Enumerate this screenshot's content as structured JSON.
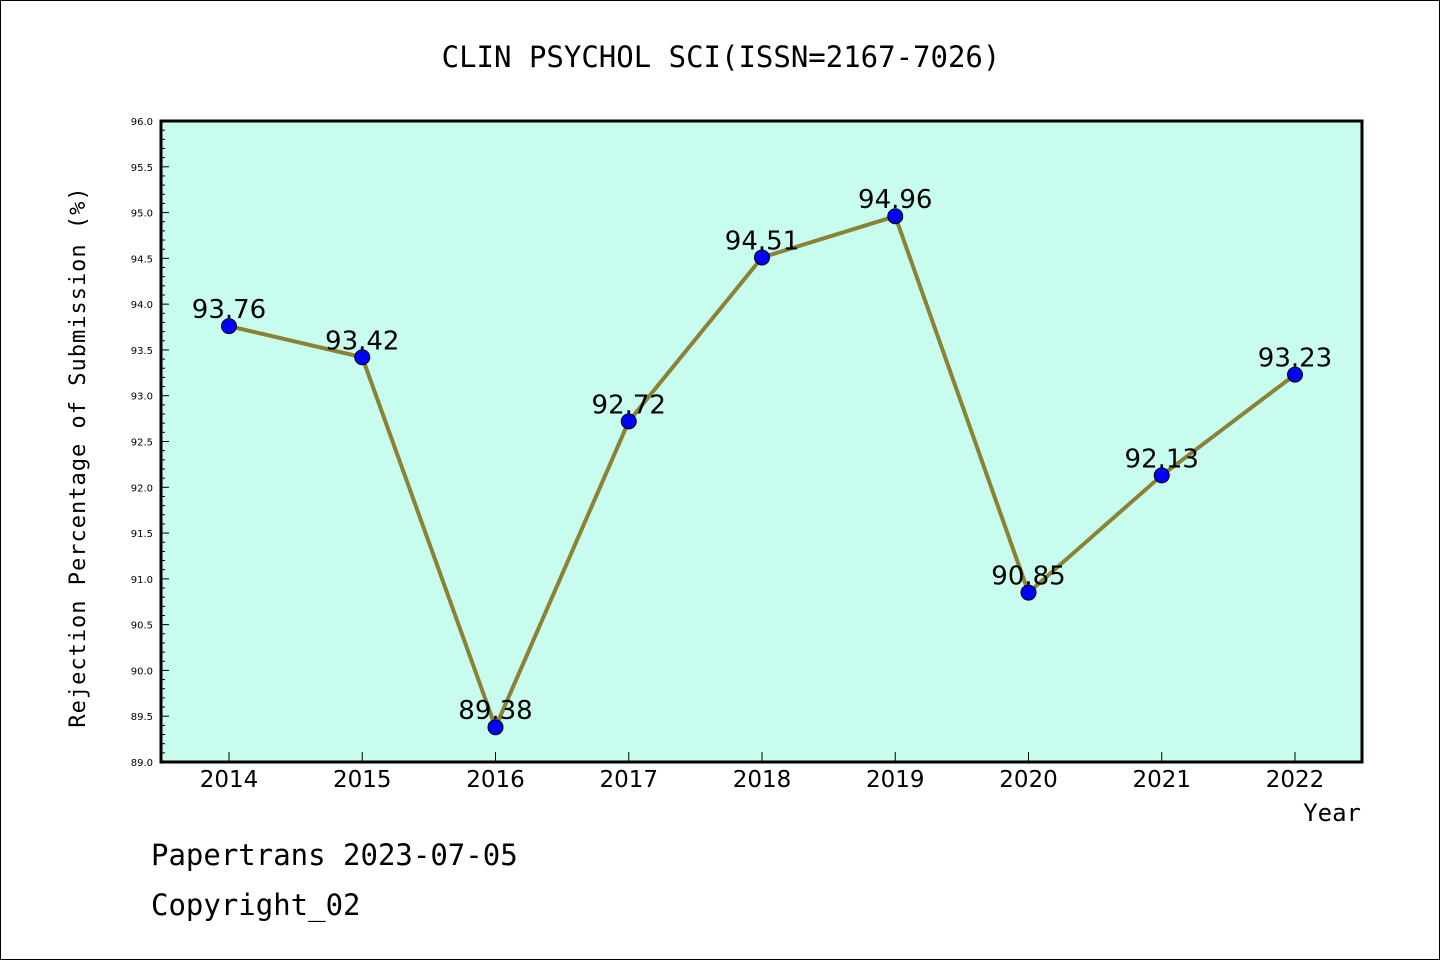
{
  "chart_data": {
    "type": "line",
    "title": "CLIN PSYCHOL SCI(ISSN=2167-7026)",
    "xlabel": "Year",
    "ylabel": "Rejection Percentage of Submission (%)",
    "categories": [
      "2014",
      "2015",
      "2016",
      "2017",
      "2018",
      "2019",
      "2020",
      "2021",
      "2022"
    ],
    "series": [
      {
        "values": [
          93.76,
          93.42,
          89.38,
          92.72,
          94.51,
          94.96,
          90.85,
          92.13,
          93.23
        ]
      }
    ],
    "data_labels": [
      "93.76",
      "93.42",
      "89.38",
      "92.72",
      "94.51",
      "94.96",
      "90.85",
      "92.13",
      "93.23"
    ],
    "ylim": [
      89.0,
      96.0
    ],
    "yticks": [
      "89.0",
      "89.5",
      "90.0",
      "90.5",
      "91.0",
      "91.5",
      "92.0",
      "92.5",
      "93.0",
      "93.5",
      "94.0",
      "94.5",
      "95.0",
      "95.5",
      "96.0"
    ],
    "grid": false,
    "colors": {
      "plot_background": "#c8fcee",
      "line": "#8b8236",
      "marker": "#0000ff"
    }
  },
  "footer": {
    "line1": "Papertrans 2023-07-05",
    "line2": "Copyright_02"
  }
}
